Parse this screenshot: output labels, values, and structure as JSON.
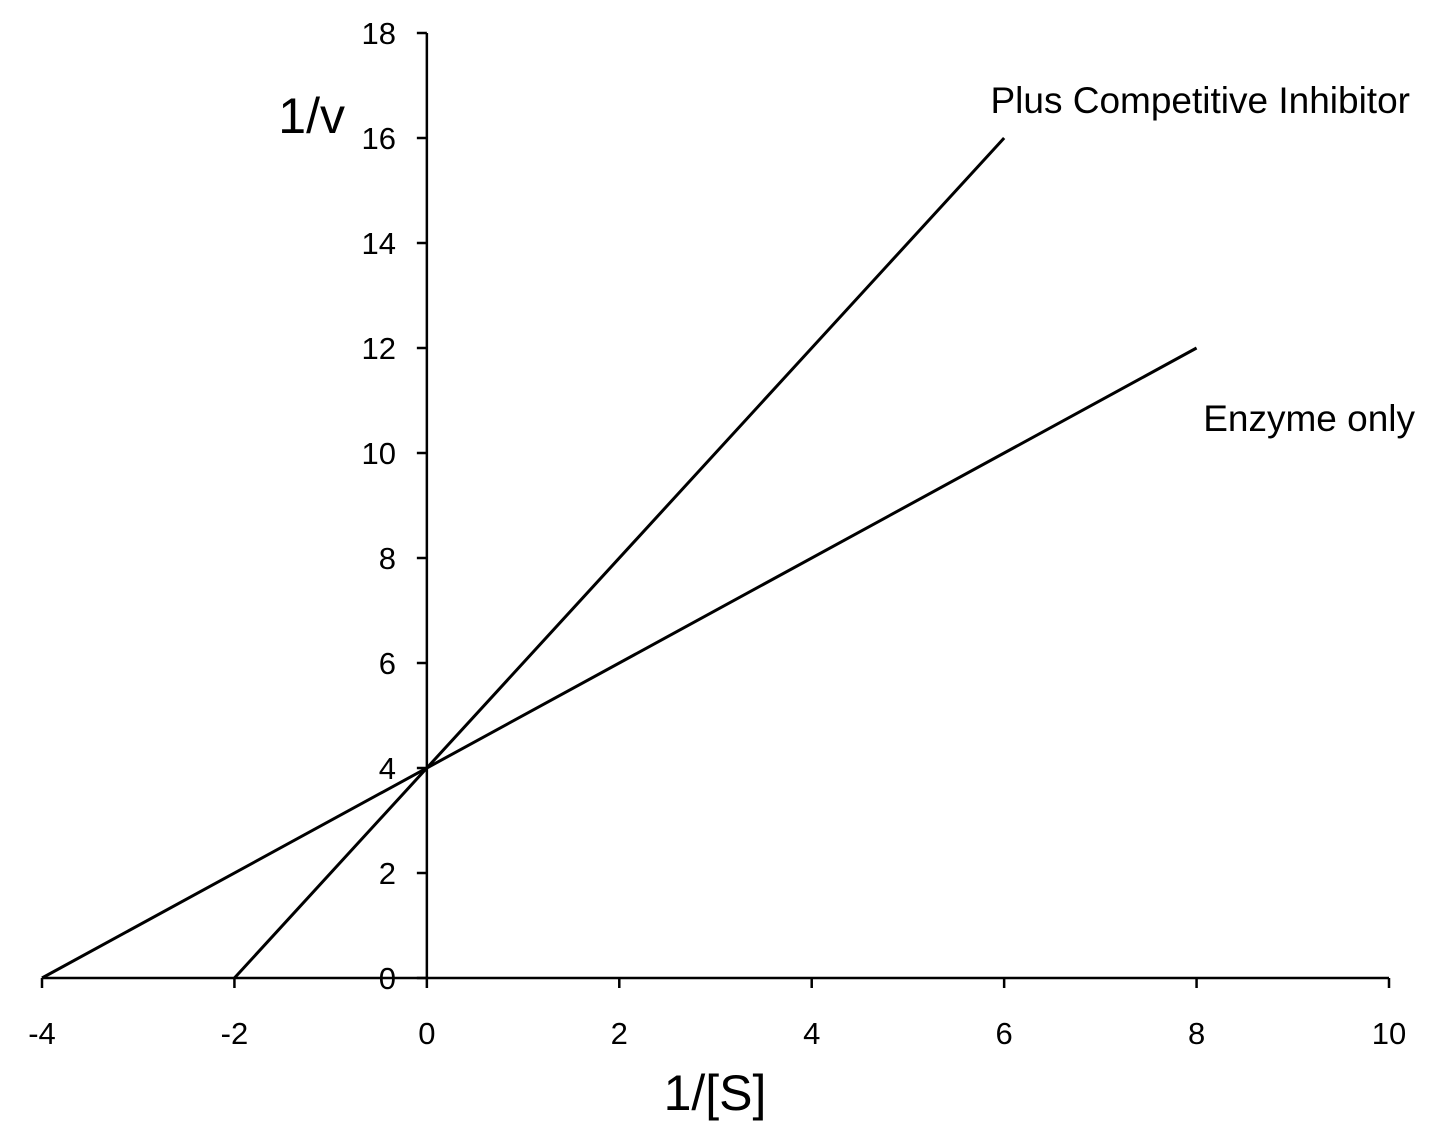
{
  "chart_data": {
    "type": "line",
    "title": "",
    "xlabel": "1/[S]",
    "ylabel": "1/v",
    "xlim": [
      -4,
      10
    ],
    "ylim": [
      0,
      18
    ],
    "xticks": [
      -4,
      -2,
      0,
      2,
      4,
      6,
      8,
      10
    ],
    "yticks": [
      0,
      2,
      4,
      6,
      8,
      10,
      12,
      14,
      16,
      18
    ],
    "grid": false,
    "legend": "inline labels",
    "series": [
      {
        "name": "Plus Competitive Inhibitor",
        "x": [
          -2,
          6
        ],
        "y": [
          0,
          16
        ],
        "color": "#000000"
      },
      {
        "name": "Enzyme only",
        "x": [
          -4,
          8
        ],
        "y": [
          0,
          12
        ],
        "color": "#000000"
      }
    ]
  }
}
